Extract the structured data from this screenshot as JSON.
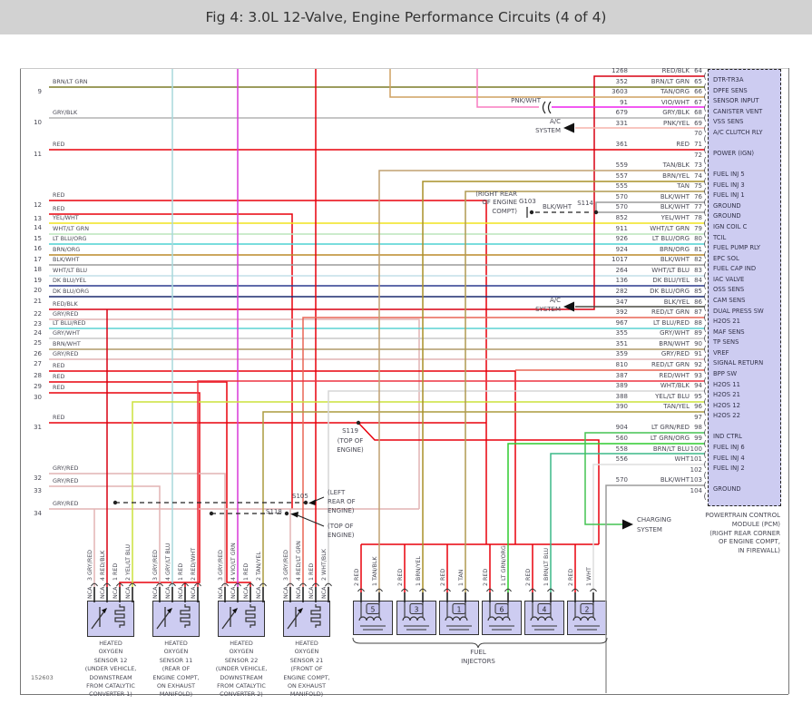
{
  "title": "Fig 4: 3.0L 12-Valve, Engine Performance Circuits (4 of 4)",
  "figure_number": "152603",
  "colors": {
    "RED": "#e8000b",
    "RED/BLK": "#d80012",
    "BRN/LT GRN": "#7c7c28",
    "TAN/ORG": "#cfa060",
    "VIO/WHT": "#ee22ee",
    "GRY/BLK": "#b4b4b4",
    "PNK/YEL": "#f6b4ac",
    "TAN/BLK": "#c0a070",
    "BRN/YEL": "#a89028",
    "TAN": "#b09a50",
    "BLK/WHT": "#9c9c9c",
    "YEL/WHT": "#f0e41e",
    "WHT/LT GRN": "#bce6bc",
    "LT BLU/ORG": "#4ed2d2",
    "BRN/ORG": "#bb8a2a",
    "WHT/LT BLU": "#c4dfe9",
    "DK BLU/YEL": "#2c3a8e",
    "DK BLU/ORG": "#1c2a6e",
    "BLK/YEL": "#4a4a40",
    "RED/LT GRN": "#e86555",
    "LT BLU/RED": "#5cd2d2",
    "GRY/WHT": "#c9c9c9",
    "BRN/WHT": "#b09a68",
    "GRY/RED": "#e2b4b4",
    "RED/WHT": "#ee3340",
    "WHT/BLK": "#d6d6d6",
    "YEL/LT BLU": "#cce23c",
    "TAN/YEL": "#ac9c3e",
    "LT GRN/RED": "#44c452",
    "LT GRN/ORG": "#2ecc2e",
    "BRN/LT BLU": "#3cb888",
    "WHT": "#dedede",
    "PNK/WHT": "#f87cc0",
    "GRY/LT BLU": "#a8d8dc",
    "VIO/LT GRN": "#d838d8",
    "BLACK": "#222222"
  },
  "pcm": {
    "label_lines": [
      "POWERTRAIN CONTROL",
      "MODULE (PCM)",
      "(RIGHT REAR CORNER",
      "OF ENGINE COMPT,",
      "IN FIREWALL)"
    ],
    "pins": [
      {
        "wire": "1268",
        "color": "RED/BLK",
        "pin": "64",
        "label": "DTR-TR3A"
      },
      {
        "wire": "352",
        "color": "BRN/LT GRN",
        "pin": "65",
        "label": "DPFE SENS"
      },
      {
        "wire": "3603",
        "color": "TAN/ORG",
        "pin": "66",
        "label": "SENSOR INPUT"
      },
      {
        "wire": "91",
        "color": "VIO/WHT",
        "pin": "67",
        "label": "CANISTER VENT"
      },
      {
        "wire": "679",
        "color": "GRY/BLK",
        "pin": "68",
        "label": "VSS SENS"
      },
      {
        "wire": "331",
        "color": "PNK/YEL",
        "pin": "69",
        "label": "A/C CLUTCH RLY"
      },
      {
        "wire": "",
        "color": "",
        "pin": "70",
        "label": ""
      },
      {
        "wire": "361",
        "color": "RED",
        "pin": "71",
        "label": "POWER (IGN)"
      },
      {
        "wire": "",
        "color": "",
        "pin": "72",
        "label": ""
      },
      {
        "wire": "559",
        "color": "TAN/BLK",
        "pin": "73",
        "label": "FUEL INJ 5"
      },
      {
        "wire": "557",
        "color": "BRN/YEL",
        "pin": "74",
        "label": "FUEL INJ 3"
      },
      {
        "wire": "555",
        "color": "TAN",
        "pin": "75",
        "label": "FUEL INJ 1"
      },
      {
        "wire": "570",
        "color": "BLK/WHT",
        "pin": "76",
        "label": "GROUND"
      },
      {
        "wire": "570",
        "color": "BLK/WHT",
        "pin": "77",
        "label": "GROUND"
      },
      {
        "wire": "852",
        "color": "YEL/WHT",
        "pin": "78",
        "label": "IGN COIL C"
      },
      {
        "wire": "911",
        "color": "WHT/LT GRN",
        "pin": "79",
        "label": "TCIL"
      },
      {
        "wire": "926",
        "color": "LT BLU/ORG",
        "pin": "80",
        "label": "FUEL PUMP RLY"
      },
      {
        "wire": "924",
        "color": "BRN/ORG",
        "pin": "81",
        "label": "EPC SOL"
      },
      {
        "wire": "1017",
        "color": "BLK/WHT",
        "pin": "82",
        "label": "FUEL CAP IND"
      },
      {
        "wire": "264",
        "color": "WHT/LT BLU",
        "pin": "83",
        "label": "IAC VALVE"
      },
      {
        "wire": "136",
        "color": "DK BLU/YEL",
        "pin": "84",
        "label": "OSS SENS"
      },
      {
        "wire": "282",
        "color": "DK BLU/ORG",
        "pin": "85",
        "label": "CAM SENS"
      },
      {
        "wire": "347",
        "color": "BLK/YEL",
        "pin": "86",
        "label": "DUAL PRESS SW"
      },
      {
        "wire": "392",
        "color": "RED/LT GRN",
        "pin": "87",
        "label": "H2OS 21"
      },
      {
        "wire": "967",
        "color": "LT BLU/RED",
        "pin": "88",
        "label": "MAF SENS"
      },
      {
        "wire": "355",
        "color": "GRY/WHT",
        "pin": "89",
        "label": "TP SENS"
      },
      {
        "wire": "351",
        "color": "BRN/WHT",
        "pin": "90",
        "label": "VREF"
      },
      {
        "wire": "359",
        "color": "GRY/RED",
        "pin": "91",
        "label": "SIGNAL RETURN"
      },
      {
        "wire": "810",
        "color": "RED/LT GRN",
        "pin": "92",
        "label": "BPP SW"
      },
      {
        "wire": "387",
        "color": "RED/WHT",
        "pin": "93",
        "label": "H2OS 11"
      },
      {
        "wire": "389",
        "color": "WHT/BLK",
        "pin": "94",
        "label": "H2OS 21"
      },
      {
        "wire": "388",
        "color": "YEL/LT BLU",
        "pin": "95",
        "label": "H2OS 12"
      },
      {
        "wire": "390",
        "color": "TAN/YEL",
        "pin": "96",
        "label": "H2OS 22"
      },
      {
        "wire": "",
        "color": "",
        "pin": "97",
        "label": ""
      },
      {
        "wire": "904",
        "color": "LT GRN/RED",
        "pin": "98",
        "label": "IND CTRL"
      },
      {
        "wire": "560",
        "color": "LT GRN/ORG",
        "pin": "99",
        "label": "FUEL INJ 6"
      },
      {
        "wire": "558",
        "color": "BRN/LT BLU",
        "pin": "100",
        "label": "FUEL INJ 4"
      },
      {
        "wire": "556",
        "color": "WHT",
        "pin": "101",
        "label": "FUEL INJ 2"
      },
      {
        "wire": "",
        "color": "",
        "pin": "102",
        "label": ""
      },
      {
        "wire": "570",
        "color": "BLK/WHT",
        "pin": "103",
        "label": "GROUND"
      },
      {
        "wire": "",
        "color": "",
        "pin": "104",
        "label": ""
      }
    ]
  },
  "left_wires": [
    {
      "num": "9",
      "color": "BRN/LT GRN"
    },
    {
      "num": "10",
      "color": "GRY/BLK"
    },
    {
      "num": "11",
      "color": "RED"
    },
    {
      "num": "12",
      "color": "RED"
    },
    {
      "num": "13",
      "color": "RED"
    },
    {
      "num": "14",
      "color": "YEL/WHT"
    },
    {
      "num": "15",
      "color": "WHT/LT GRN"
    },
    {
      "num": "16",
      "color": "LT BLU/ORG"
    },
    {
      "num": "17",
      "color": "BRN/ORG"
    },
    {
      "num": "18",
      "color": "BLK/WHT"
    },
    {
      "num": "19",
      "color": "WHT/LT BLU"
    },
    {
      "num": "20",
      "color": "DK BLU/YEL"
    },
    {
      "num": "21",
      "color": "DK BLU/ORG"
    },
    {
      "num": "22",
      "color": "RED/BLK"
    },
    {
      "num": "23",
      "color": "GRY/RED"
    },
    {
      "num": "24",
      "color": "LT BLU/RED"
    },
    {
      "num": "25",
      "color": "GRY/WHT"
    },
    {
      "num": "26",
      "color": "BRN/WHT"
    },
    {
      "num": "27",
      "color": "GRY/RED"
    },
    {
      "num": "28",
      "color": "RED"
    },
    {
      "num": "29",
      "color": "RED"
    },
    {
      "num": "30",
      "color": "RED"
    },
    {
      "num": "31",
      "color": "RED"
    },
    {
      "num": "32",
      "color": "GRY/RED"
    },
    {
      "num": "33",
      "color": "GRY/RED"
    },
    {
      "num": "34",
      "color": "GRY/RED"
    }
  ],
  "sensors": {
    "nca": "NCA",
    "items": [
      {
        "pins": [
          {
            "n": "3",
            "color": "GRY/RED"
          },
          {
            "n": "4",
            "color": "RED/BLK"
          },
          {
            "n": "1",
            "color": "RED"
          },
          {
            "n": "2",
            "color": "YEL/LT BLU"
          }
        ],
        "label_lines": [
          "HEATED",
          "OXYGEN",
          "SENSOR 12",
          "(UNDER VEHICLE,",
          "DOWNSTREAM",
          "FROM CATALYTIC",
          "CONVERTER 1)"
        ]
      },
      {
        "pins": [
          {
            "n": "3",
            "color": "GRY/RED"
          },
          {
            "n": "4",
            "color": "GRY/LT BLU"
          },
          {
            "n": "1",
            "color": "RED"
          },
          {
            "n": "2",
            "color": "RED/WHT"
          }
        ],
        "label_lines": [
          "HEATED",
          "OXYGEN",
          "SENSOR 11",
          "(REAR OF",
          "ENGINE COMPT,",
          "ON EXHAUST",
          "MANIFOLD)"
        ]
      },
      {
        "pins": [
          {
            "n": "3",
            "color": "GRY/RED"
          },
          {
            "n": "4",
            "color": "VIO/LT GRN"
          },
          {
            "n": "1",
            "color": "RED"
          },
          {
            "n": "2",
            "color": "TAN/YEL"
          }
        ],
        "label_lines": [
          "HEATED",
          "OXYGEN",
          "SENSOR 22",
          "(UNDER VEHICLE,",
          "DOWNSTREAM",
          "FROM CATALYTIC",
          "CONVERTER 2)"
        ]
      },
      {
        "pins": [
          {
            "n": "3",
            "color": "GRY/RED"
          },
          {
            "n": "4",
            "color": "RED/LT GRN"
          },
          {
            "n": "1",
            "color": "RED"
          },
          {
            "n": "2",
            "color": "WHT/BLK"
          }
        ],
        "label_lines": [
          "HEATED",
          "OXYGEN",
          "SENSOR 21",
          "(FRONT OF",
          "ENGINE COMPT,",
          "ON EXHAUST",
          "MANIFOLD)"
        ]
      }
    ]
  },
  "injectors": {
    "group_label_lines": [
      "FUEL",
      "INJECTORS"
    ],
    "items": [
      {
        "num": "5",
        "pins": [
          {
            "n": "2",
            "color": "RED"
          },
          {
            "n": "1",
            "color": "TAN/BLK"
          }
        ]
      },
      {
        "num": "3",
        "pins": [
          {
            "n": "2",
            "color": "RED"
          },
          {
            "n": "1",
            "color": "BRN/YEL"
          }
        ]
      },
      {
        "num": "1",
        "pins": [
          {
            "n": "2",
            "color": "RED"
          },
          {
            "n": "1",
            "color": "TAN"
          }
        ]
      },
      {
        "num": "6",
        "pins": [
          {
            "n": "2",
            "color": "RED"
          },
          {
            "n": "1",
            "color": "LT GRN/ORG"
          }
        ]
      },
      {
        "num": "4",
        "pins": [
          {
            "n": "2",
            "color": "RED"
          },
          {
            "n": "1",
            "color": "BRN/LT BLU"
          }
        ]
      },
      {
        "num": "2",
        "pins": [
          {
            "n": "2",
            "color": "RED"
          },
          {
            "n": "1",
            "color": "WHT"
          }
        ]
      }
    ]
  },
  "annotations": {
    "pnk_wht_label": "PNK/WHT",
    "ac_system_lines": [
      "A/C",
      "SYSTEM"
    ],
    "charging_lines": [
      "CHARGING",
      "SYSTEM"
    ],
    "g103": {
      "label": "G103",
      "wire_label": "BLK/WHT",
      "splice": "S114",
      "location_lines": [
        "(RIGHT REAR",
        "OF ENGINE",
        "COMPT)"
      ]
    },
    "s119": {
      "label": "S119",
      "location_lines": [
        "(TOP OF",
        "ENGINE)"
      ]
    },
    "s105": {
      "label": "S105",
      "location_lines": [
        "(LEFT",
        "REAR OF",
        "ENGINE)"
      ]
    },
    "s118": {
      "label": "S118",
      "location_lines": [
        "(TOP OF",
        "ENGINE)"
      ]
    }
  }
}
